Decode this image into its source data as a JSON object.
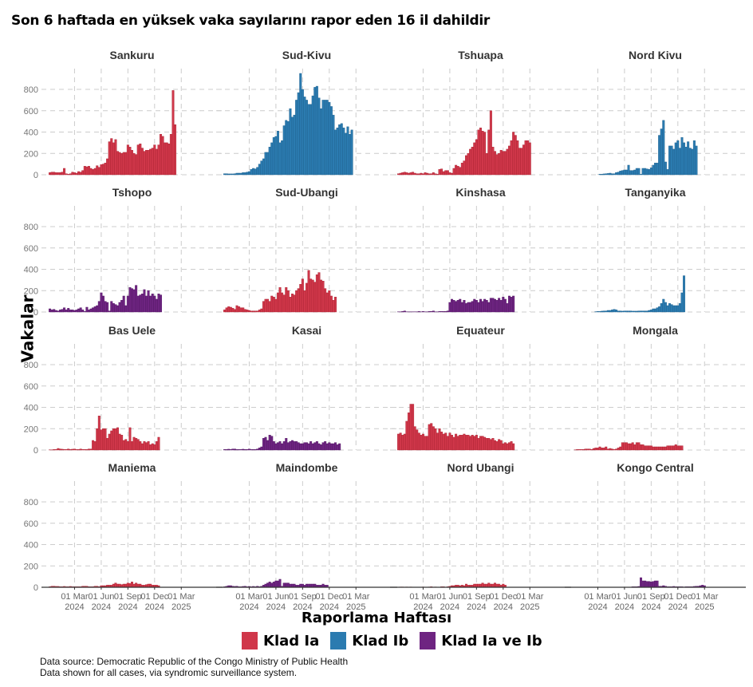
{
  "title": "Son 6 haftada en yüksek vaka sayılarını rapor eden 16 il dahildir",
  "y_axis_title": "Vakalar",
  "x_axis_title": "Raporlama Haftası",
  "legend": [
    {
      "label": "Klad Ia",
      "color": "#d0374a",
      "key": "Ia"
    },
    {
      "label": "Klad Ib",
      "color": "#2b7bb0",
      "key": "Ib"
    },
    {
      "label": "Klad Ia ve Ib",
      "color": "#6e2481",
      "key": "IaIb"
    }
  ],
  "caption": [
    "Data source: Democratic Republic of the Congo Ministry of Public Health",
    "Data shown for all cases, via syndromic surveillance system."
  ],
  "chart_data": {
    "type": "bar",
    "layout": "facet-grid 4x4",
    "title": "Son 6 haftada en yüksek vaka sayılarını rapor eden 16 il dahildir",
    "xlabel": "Raporlama Haftası",
    "ylabel": "Vakalar",
    "ylim": [
      0,
      950
    ],
    "yticks": [
      0,
      200,
      400,
      600,
      800
    ],
    "xticks": [
      {
        "line1": "01 Mar",
        "line2": "2024"
      },
      {
        "line1": "01 Jun",
        "line2": "2024"
      },
      {
        "line1": "01 Sep",
        "line2": "2024"
      },
      {
        "line1": "01 Dec",
        "line2": "2024"
      },
      {
        "line1": "01 Mar",
        "line2": "2025"
      }
    ],
    "x_range_weeks": [
      -13,
      69
    ],
    "tick_weeks": [
      0,
      13,
      26,
      39,
      52
    ],
    "grid": true,
    "legend_position": "bottom",
    "panels": [
      {
        "name": "Sankuru",
        "clade": "Ia",
        "start_week": -12,
        "values": [
          20,
          25,
          25,
          20,
          20,
          20,
          25,
          60,
          10,
          5,
          10,
          25,
          20,
          15,
          30,
          25,
          40,
          80,
          75,
          80,
          60,
          50,
          60,
          85,
          70,
          95,
          100,
          110,
          150,
          310,
          340,
          300,
          330,
          220,
          210,
          200,
          210,
          210,
          280,
          260,
          230,
          200,
          190,
          280,
          290,
          250,
          220,
          230,
          230,
          240,
          250,
          280,
          240,
          280,
          380,
          360,
          300,
          300,
          290,
          380,
          790,
          470
        ]
      },
      {
        "name": "Sud-Kivu",
        "clade": "Ib",
        "start_week": -12,
        "values": [
          10,
          10,
          8,
          8,
          8,
          10,
          15,
          15,
          15,
          20,
          20,
          25,
          30,
          50,
          60,
          55,
          70,
          100,
          130,
          150,
          210,
          210,
          260,
          300,
          350,
          360,
          410,
          300,
          320,
          460,
          510,
          500,
          620,
          540,
          560,
          700,
          770,
          950,
          800,
          730,
          700,
          660,
          660,
          740,
          820,
          830,
          720,
          620,
          700,
          700,
          700,
          680,
          640,
          560,
          420,
          440,
          470,
          480,
          440,
          390,
          450,
          380,
          420
        ]
      },
      {
        "name": "Tshuapa",
        "clade": "Ia",
        "start_week": -12,
        "values": [
          10,
          15,
          20,
          25,
          20,
          15,
          20,
          25,
          15,
          10,
          10,
          15,
          10,
          20,
          15,
          10,
          10,
          20,
          10,
          5,
          50,
          55,
          30,
          40,
          40,
          20,
          15,
          60,
          90,
          80,
          70,
          110,
          130,
          180,
          200,
          240,
          260,
          300,
          330,
          420,
          440,
          410,
          400,
          200,
          420,
          600,
          260,
          220,
          190,
          200,
          230,
          220,
          220,
          240,
          270,
          320,
          400,
          370,
          320,
          250,
          250,
          280,
          320,
          320,
          300
        ]
      },
      {
        "name": "Nord Kivu",
        "clade": "Ib",
        "start_week": 1,
        "values": [
          5,
          5,
          8,
          10,
          12,
          15,
          10,
          10,
          20,
          25,
          35,
          40,
          45,
          45,
          90,
          40,
          40,
          45,
          60,
          60,
          5,
          60,
          60,
          55,
          50,
          65,
          90,
          110,
          110,
          370,
          430,
          510,
          120,
          50,
          270,
          270,
          240,
          300,
          320,
          250,
          350,
          300,
          260,
          310,
          250,
          240,
          320,
          270
        ]
      },
      {
        "name": "Tshopo",
        "clade": "IaIb",
        "start_week": -12,
        "values": [
          30,
          20,
          25,
          15,
          10,
          20,
          25,
          40,
          20,
          35,
          20,
          20,
          15,
          20,
          30,
          40,
          20,
          5,
          45,
          20,
          30,
          40,
          50,
          60,
          100,
          180,
          150,
          100,
          90,
          10,
          100,
          80,
          70,
          60,
          90,
          110,
          150,
          60,
          150,
          230,
          220,
          210,
          250,
          150,
          160,
          170,
          210,
          150,
          200,
          150,
          170,
          150,
          120,
          170,
          160
        ]
      },
      {
        "name": "Sud-Ubangi",
        "clade": "Ia",
        "start_week": -12,
        "values": [
          20,
          40,
          50,
          45,
          35,
          25,
          60,
          50,
          40,
          40,
          25,
          20,
          15,
          10,
          10,
          10,
          10,
          20,
          30,
          100,
          120,
          120,
          100,
          150,
          140,
          120,
          180,
          230,
          180,
          160,
          230,
          200,
          140,
          170,
          160,
          200,
          220,
          260,
          310,
          200,
          270,
          390,
          310,
          300,
          280,
          350,
          370,
          300,
          290,
          220,
          180,
          200,
          150,
          110,
          140
        ]
      },
      {
        "name": "Kinshasa",
        "clade": "IaIb",
        "start_week": -12,
        "values": [
          2,
          2,
          5,
          10,
          2,
          2,
          2,
          2,
          2,
          2,
          5,
          2,
          5,
          2,
          2,
          5,
          5,
          10,
          2,
          2,
          5,
          5,
          5,
          5,
          10,
          90,
          120,
          110,
          100,
          110,
          120,
          90,
          110,
          80,
          90,
          90,
          100,
          120,
          110,
          90,
          120,
          100,
          120,
          110,
          90,
          130,
          130,
          120,
          110,
          130,
          110,
          140,
          120,
          80,
          150,
          140,
          150
        ]
      },
      {
        "name": "Tanganyika",
        "clade": "Ib",
        "start_week": -1,
        "values": [
          3,
          5,
          5,
          8,
          10,
          10,
          15,
          15,
          20,
          25,
          20,
          10,
          10,
          8,
          10,
          10,
          10,
          10,
          8,
          8,
          8,
          10,
          10,
          10,
          10,
          10,
          15,
          20,
          30,
          30,
          40,
          50,
          80,
          120,
          90,
          60,
          80,
          70,
          60,
          60,
          60,
          80,
          180,
          340
        ]
      },
      {
        "name": "Bas Uele",
        "clade": "Ia",
        "start_week": -12,
        "values": [
          2,
          2,
          5,
          5,
          15,
          10,
          8,
          5,
          5,
          10,
          5,
          8,
          10,
          5,
          5,
          10,
          5,
          5,
          5,
          10,
          10,
          90,
          80,
          200,
          320,
          190,
          200,
          200,
          110,
          150,
          180,
          200,
          200,
          210,
          150,
          140,
          90,
          100,
          80,
          210,
          80,
          120,
          110,
          100,
          80,
          60,
          80,
          70,
          80,
          50,
          60,
          50,
          80,
          120
        ]
      },
      {
        "name": "Kasai",
        "clade": "IaIb",
        "start_week": -12,
        "values": [
          5,
          5,
          8,
          5,
          10,
          10,
          5,
          5,
          5,
          8,
          5,
          5,
          10,
          5,
          5,
          5,
          10,
          20,
          30,
          110,
          120,
          90,
          140,
          130,
          80,
          60,
          70,
          80,
          60,
          80,
          110,
          70,
          80,
          90,
          80,
          80,
          70,
          60,
          60,
          70,
          70,
          60,
          80,
          60,
          70,
          80,
          60,
          50,
          70,
          80,
          60,
          70,
          60,
          60,
          70,
          50,
          60
        ]
      },
      {
        "name": "Equateur",
        "clade": "Ia",
        "start_week": -12,
        "values": [
          150,
          160,
          140,
          150,
          270,
          350,
          430,
          430,
          220,
          190,
          160,
          140,
          150,
          130,
          130,
          240,
          250,
          220,
          200,
          160,
          200,
          170,
          150,
          160,
          130,
          160,
          140,
          120,
          150,
          130,
          140,
          140,
          150,
          140,
          140,
          130,
          140,
          130,
          140,
          110,
          130,
          130,
          120,
          110,
          110,
          100,
          110,
          90,
          80,
          100,
          90,
          60,
          70,
          60,
          70,
          80,
          60
        ]
      },
      {
        "name": "Mongala",
        "clade": "Ia",
        "start_week": -11,
        "values": [
          2,
          5,
          5,
          5,
          5,
          10,
          10,
          10,
          5,
          15,
          20,
          20,
          30,
          20,
          20,
          30,
          10,
          15,
          10,
          5,
          10,
          20,
          30,
          70,
          70,
          70,
          60,
          60,
          70,
          50,
          70,
          70,
          50,
          50,
          40,
          40,
          40,
          40,
          30,
          30,
          30,
          30,
          30,
          30,
          30,
          40,
          40,
          40,
          40,
          50,
          40,
          40,
          40
        ]
      },
      {
        "name": "Maniema",
        "clade": "Ia",
        "start_week": -12,
        "values": [
          5,
          10,
          10,
          8,
          8,
          5,
          5,
          8,
          5,
          5,
          8,
          5,
          5,
          5,
          5,
          5,
          10,
          10,
          10,
          5,
          5,
          5,
          10,
          10,
          5,
          15,
          15,
          15,
          20,
          20,
          20,
          30,
          40,
          30,
          30,
          25,
          30,
          30,
          40,
          35,
          50,
          30,
          40,
          30,
          30,
          20,
          20,
          25,
          30,
          30,
          20,
          20,
          20,
          15
        ]
      },
      {
        "name": "Maindombe",
        "clade": "IaIb",
        "start_week": -12,
        "values": [
          5,
          10,
          15,
          15,
          10,
          8,
          10,
          5,
          5,
          8,
          10,
          5,
          8,
          5,
          8,
          5,
          10,
          5,
          10,
          20,
          30,
          40,
          50,
          40,
          50,
          60,
          60,
          75,
          10,
          40,
          40,
          40,
          30,
          30,
          30,
          20,
          20,
          30,
          30,
          20,
          30,
          30,
          30,
          30,
          30,
          20,
          20,
          20,
          30,
          20,
          20
        ]
      },
      {
        "name": "Nord Ubangi",
        "clade": "Ia",
        "start_week": -12,
        "values": [
          0,
          3,
          3,
          0,
          3,
          0,
          3,
          0,
          0,
          0,
          0,
          0,
          3,
          0,
          0,
          3,
          5,
          0,
          3,
          0,
          0,
          5,
          5,
          0,
          5,
          10,
          15,
          15,
          20,
          20,
          15,
          20,
          15,
          30,
          20,
          20,
          20,
          30,
          30,
          30,
          30,
          40,
          30,
          30,
          40,
          30,
          30,
          40,
          30,
          30,
          20,
          30,
          20
        ]
      },
      {
        "name": "Kongo Central",
        "clade": "IaIb",
        "start_week": 17,
        "values": [
          5,
          5,
          5,
          8,
          90,
          60,
          60,
          55,
          55,
          50,
          55,
          60,
          60,
          10,
          10,
          15,
          10,
          5,
          5,
          5,
          8,
          5,
          5,
          5,
          5,
          3,
          5,
          5,
          5,
          5,
          8,
          10,
          10,
          15,
          20,
          15
        ]
      }
    ]
  }
}
